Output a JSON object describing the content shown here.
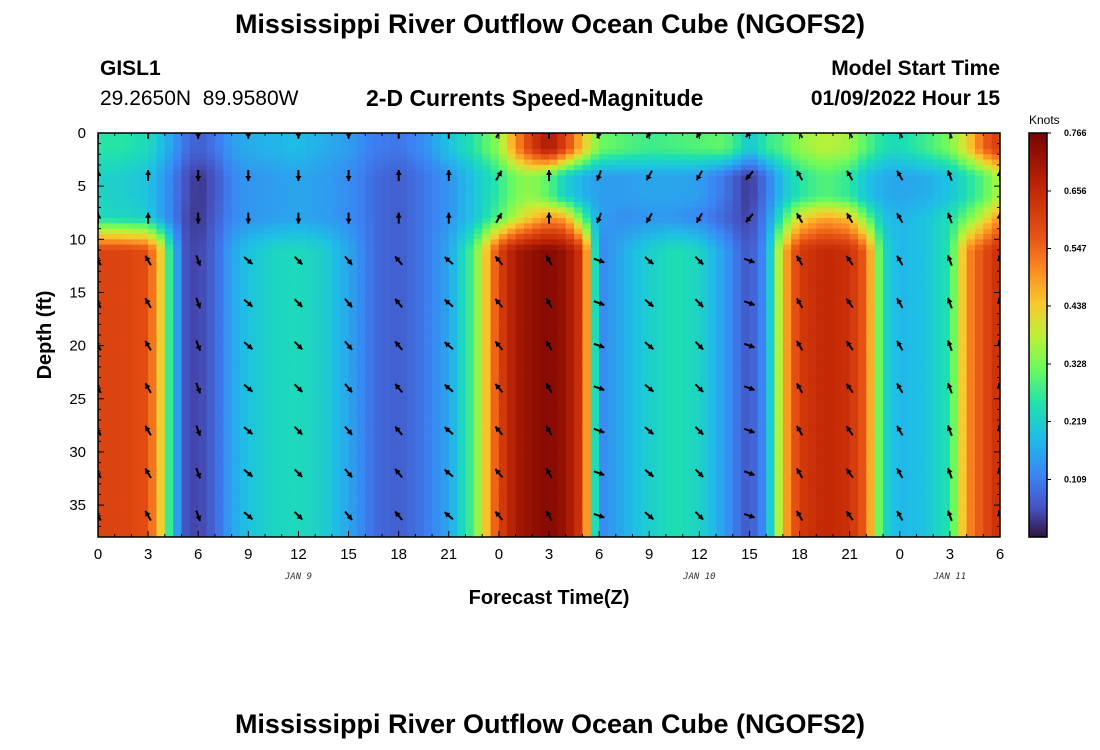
{
  "page": {
    "title_top": "Mississippi River Outflow Ocean Cube (NGOFS2)",
    "title_bottom": "Mississippi River Outflow Ocean Cube (NGOFS2)",
    "station_id": "GISL1",
    "station_coords": "29.2650N  89.9580W",
    "plot_title": "2-D Currents Speed-Magnitude",
    "model_start_label": "Model Start Time",
    "model_start_value": "01/09/2022 Hour 15"
  },
  "chart_data": {
    "type": "heatmap",
    "title": "2-D Currents Speed-Magnitude",
    "xlabel": "Forecast Time(Z)",
    "ylabel": "Depth (ft)",
    "colorbar_units": "Knots",
    "x_range_hours": [
      0,
      54
    ],
    "y_range_ft": [
      0,
      38
    ],
    "value_range": [
      0,
      0.766
    ],
    "x_ticks": [
      {
        "hour": 0,
        "label": "0"
      },
      {
        "hour": 3,
        "label": "3"
      },
      {
        "hour": 6,
        "label": "6"
      },
      {
        "hour": 9,
        "label": "9"
      },
      {
        "hour": 12,
        "label": "12"
      },
      {
        "hour": 15,
        "label": "15"
      },
      {
        "hour": 18,
        "label": "18"
      },
      {
        "hour": 21,
        "label": "21"
      },
      {
        "hour": 24,
        "label": "0"
      },
      {
        "hour": 27,
        "label": "3"
      },
      {
        "hour": 30,
        "label": "6"
      },
      {
        "hour": 33,
        "label": "9"
      },
      {
        "hour": 36,
        "label": "12"
      },
      {
        "hour": 39,
        "label": "15"
      },
      {
        "hour": 42,
        "label": "18"
      },
      {
        "hour": 45,
        "label": "21"
      },
      {
        "hour": 48,
        "label": "0"
      },
      {
        "hour": 51,
        "label": "3"
      },
      {
        "hour": 54,
        "label": "6"
      }
    ],
    "day_labels": [
      {
        "hour": 12,
        "label": "JAN 9"
      },
      {
        "hour": 36,
        "label": "JAN 10"
      },
      {
        "hour": 51,
        "label": "JAN 11"
      }
    ],
    "y_ticks": [
      {
        "depth": 0,
        "label": "0"
      },
      {
        "depth": 5,
        "label": "5"
      },
      {
        "depth": 10,
        "label": "10"
      },
      {
        "depth": 15,
        "label": "15"
      },
      {
        "depth": 20,
        "label": "20"
      },
      {
        "depth": 25,
        "label": "25"
      },
      {
        "depth": 30,
        "label": "30"
      },
      {
        "depth": 35,
        "label": "35"
      }
    ],
    "colorbar_ticks": [
      {
        "value": 0.109,
        "label": "0.109"
      },
      {
        "value": 0.219,
        "label": "0.219"
      },
      {
        "value": 0.328,
        "label": "0.328"
      },
      {
        "value": 0.438,
        "label": "0.438"
      },
      {
        "value": 0.547,
        "label": "0.547"
      },
      {
        "value": 0.656,
        "label": "0.656"
      },
      {
        "value": 0.766,
        "label": "0.766"
      }
    ],
    "speed_columns": {
      "hours": [
        0,
        1.5,
        3,
        3.7,
        4.5,
        5.2,
        6,
        7,
        8,
        9,
        10.5,
        12,
        13.5,
        15,
        16.5,
        18,
        19.5,
        21,
        22.5,
        24,
        25,
        26,
        27,
        28,
        29,
        30,
        31.5,
        33,
        34.5,
        36,
        37.5,
        38.5,
        39,
        40,
        41,
        42,
        43.5,
        45,
        46,
        47,
        48,
        49.5,
        51,
        52,
        53,
        54
      ],
      "surface_0_2ft": [
        0.26,
        0.26,
        0.24,
        0.2,
        0.15,
        0.1,
        0.07,
        0.1,
        0.15,
        0.17,
        0.18,
        0.19,
        0.17,
        0.15,
        0.11,
        0.1,
        0.13,
        0.2,
        0.26,
        0.35,
        0.5,
        0.62,
        0.7,
        0.6,
        0.45,
        0.32,
        0.3,
        0.28,
        0.29,
        0.3,
        0.31,
        0.25,
        0.2,
        0.27,
        0.3,
        0.35,
        0.38,
        0.36,
        0.3,
        0.25,
        0.24,
        0.28,
        0.33,
        0.42,
        0.55,
        0.62
      ],
      "upper_4_6ft": [
        0.23,
        0.22,
        0.2,
        0.16,
        0.11,
        0.06,
        0.03,
        0.06,
        0.12,
        0.14,
        0.15,
        0.16,
        0.15,
        0.13,
        0.09,
        0.07,
        0.1,
        0.14,
        0.2,
        0.27,
        0.33,
        0.35,
        0.3,
        0.22,
        0.18,
        0.15,
        0.15,
        0.16,
        0.16,
        0.15,
        0.1,
        0.05,
        0.03,
        0.1,
        0.2,
        0.26,
        0.3,
        0.27,
        0.2,
        0.17,
        0.16,
        0.17,
        0.2,
        0.25,
        0.3,
        0.38
      ],
      "mid_8ft": [
        0.24,
        0.23,
        0.22,
        0.16,
        0.11,
        0.05,
        0.03,
        0.07,
        0.12,
        0.14,
        0.15,
        0.16,
        0.15,
        0.13,
        0.09,
        0.07,
        0.1,
        0.14,
        0.2,
        0.3,
        0.38,
        0.45,
        0.5,
        0.48,
        0.3,
        0.15,
        0.13,
        0.14,
        0.14,
        0.12,
        0.08,
        0.05,
        0.04,
        0.12,
        0.28,
        0.42,
        0.48,
        0.45,
        0.32,
        0.2,
        0.18,
        0.2,
        0.25,
        0.32,
        0.4,
        0.5
      ],
      "lower_12_38ft": [
        0.6,
        0.6,
        0.58,
        0.45,
        0.2,
        0.06,
        0.04,
        0.08,
        0.16,
        0.2,
        0.23,
        0.24,
        0.22,
        0.16,
        0.09,
        0.07,
        0.1,
        0.16,
        0.3,
        0.6,
        0.7,
        0.73,
        0.75,
        0.72,
        0.62,
        0.12,
        0.17,
        0.22,
        0.25,
        0.23,
        0.15,
        0.08,
        0.06,
        0.14,
        0.45,
        0.62,
        0.66,
        0.64,
        0.55,
        0.24,
        0.18,
        0.2,
        0.26,
        0.5,
        0.58,
        0.65
      ]
    },
    "arrow_hours": [
      0,
      3,
      6,
      9,
      12,
      15,
      18,
      21,
      24,
      27,
      30,
      33,
      36,
      39,
      42,
      45,
      48,
      51,
      54
    ],
    "arrow_depths": [
      0,
      4,
      8,
      12,
      16,
      20,
      24,
      28,
      32,
      36
    ],
    "arrow_directions_deg": {
      "near_surface_0_8ft": [
        0,
        0,
        180,
        180,
        180,
        180,
        0,
        0,
        30,
        0,
        200,
        210,
        210,
        220,
        330,
        330,
        330,
        340,
        0
      ],
      "deep_12_36ft": [
        330,
        330,
        160,
        130,
        135,
        140,
        320,
        310,
        320,
        330,
        110,
        130,
        135,
        110,
        330,
        325,
        330,
        340,
        350
      ]
    }
  }
}
